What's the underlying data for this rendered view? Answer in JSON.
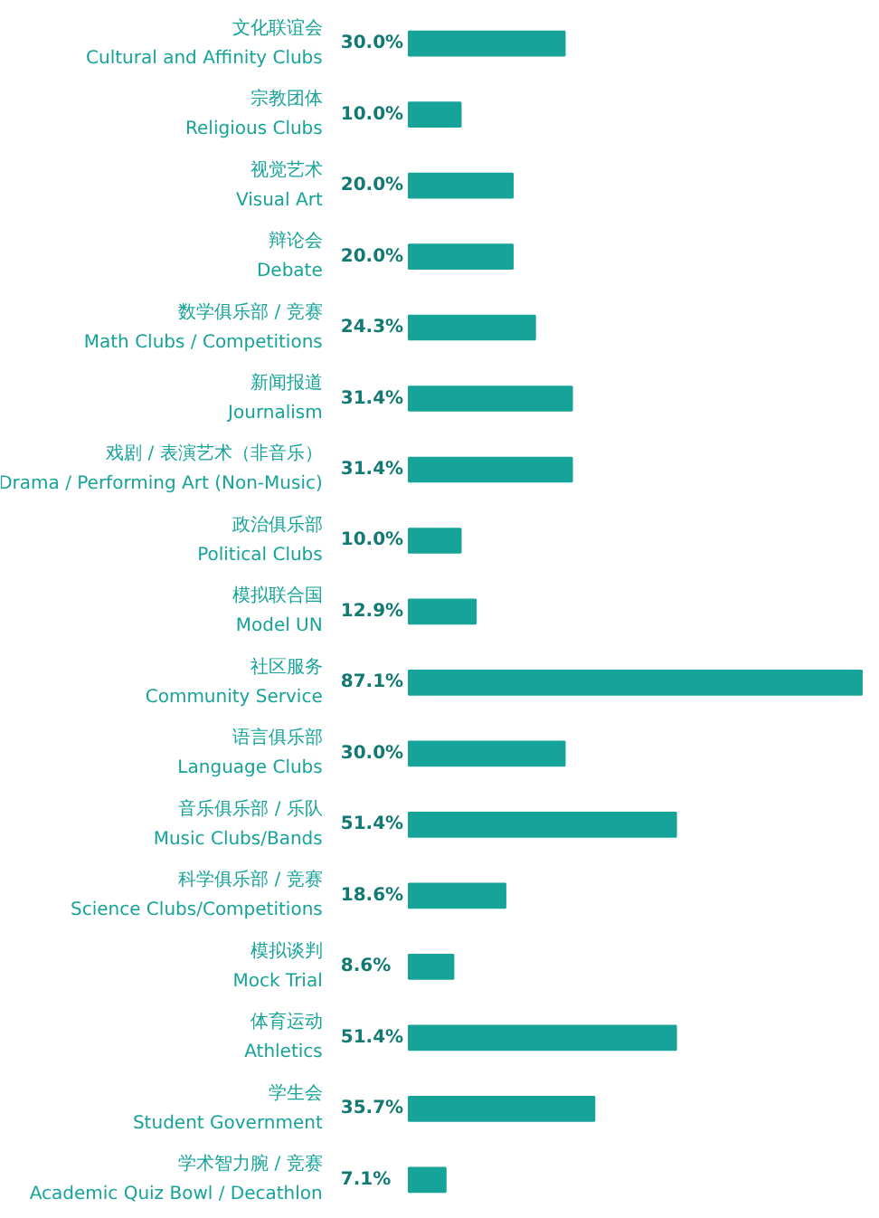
{
  "chart_data": {
    "type": "bar",
    "orientation": "horizontal",
    "grid": false,
    "color": "#16a399",
    "value_labels": [
      "30.0%",
      "10.0%",
      "20.0%",
      "20.0%",
      "24.3%",
      "31.4%",
      "31.4%",
      "10.0%",
      "12.9%",
      "87.1%",
      "30.0%",
      "51.4%",
      "18.6%",
      "8.6%",
      "51.4%",
      "35.7%",
      "7.1%"
    ],
    "categories": [
      "文化联谊会\nCultural and Affinity Clubs",
      "宗教团体\nReligious Clubs",
      "视觉艺术\nVisual Art",
      "辩论会\nDebate",
      "数学俱乐部 / 竞赛\nMath Clubs / Competitions",
      "新闻报道\nJournalism",
      "戏剧 / 表演艺术（非音乐）\nDrama / Performing Art (Non-Music)",
      "政治俱乐部\nPolitical Clubs",
      "模拟联合国\nModel UN",
      "社区服务\nCommunity Service",
      "语言俱乐部\nLanguage Clubs",
      "音乐俱乐部 / 乐队\nMusic Clubs/Bands",
      "科学俱乐部 / 竞赛\nScience Clubs/Competitions",
      "模拟谈判\nMock Trial",
      "体育运动\nAthletics",
      "学生会\nStudent Government",
      "学术智力腕 / 竞赛\nAcademic Quiz Bowl / Decathlon"
    ],
    "values": [
      30.0,
      10.0,
      20.0,
      20.0,
      24.3,
      31.4,
      31.4,
      10.0,
      12.9,
      87.1,
      30.0,
      51.4,
      18.6,
      8.6,
      51.4,
      35.7,
      7.1
    ]
  }
}
